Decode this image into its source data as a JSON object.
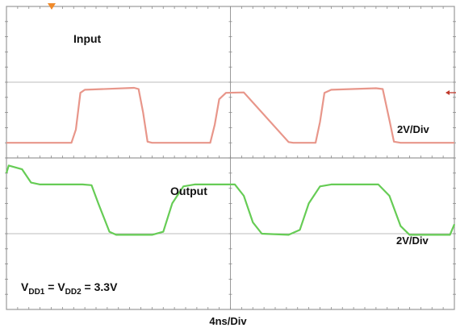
{
  "chart_data": {
    "type": "line",
    "x_label": "4ns/Div",
    "time_per_div_ns": 4,
    "volts_per_div": 2,
    "grid": {
      "h_divisions": 2,
      "v_divisions": 4,
      "minor_ticks_per_div": 5
    },
    "traces": [
      {
        "name": "Input",
        "scale_label": "2V/Div",
        "color": "#e8968a",
        "points": [
          [
            0,
            0.4
          ],
          [
            1.45,
            0.4
          ],
          [
            1.55,
            0.75
          ],
          [
            1.65,
            1.72
          ],
          [
            1.75,
            1.8
          ],
          [
            2.85,
            1.85
          ],
          [
            2.95,
            1.82
          ],
          [
            3.05,
            1.2
          ],
          [
            3.15,
            0.43
          ],
          [
            3.25,
            0.4
          ],
          [
            4.55,
            0.4
          ],
          [
            4.65,
            0.88
          ],
          [
            4.75,
            1.55
          ],
          [
            4.9,
            1.72
          ],
          [
            5.3,
            1.73
          ],
          [
            6.3,
            0.42
          ],
          [
            6.4,
            0.4
          ],
          [
            6.55,
            0.4
          ],
          [
            6.9,
            0.4
          ],
          [
            7.0,
            0.95
          ],
          [
            7.1,
            1.72
          ],
          [
            7.25,
            1.8
          ],
          [
            8.25,
            1.84
          ],
          [
            8.4,
            1.82
          ],
          [
            8.55,
            1.0
          ],
          [
            8.65,
            0.43
          ],
          [
            8.8,
            0.4
          ],
          [
            10,
            0.4
          ]
        ]
      },
      {
        "name": "Output",
        "scale_label": "2V/Div",
        "color": "#66cc55",
        "points": [
          [
            0,
            -0.4
          ],
          [
            0.05,
            -0.2
          ],
          [
            0.35,
            -0.3
          ],
          [
            0.55,
            -0.65
          ],
          [
            0.75,
            -0.7
          ],
          [
            1.7,
            -0.7
          ],
          [
            1.9,
            -0.72
          ],
          [
            2.05,
            -1.2
          ],
          [
            2.3,
            -1.95
          ],
          [
            2.45,
            -2.03
          ],
          [
            3.25,
            -2.03
          ],
          [
            3.5,
            -1.95
          ],
          [
            3.7,
            -1.2
          ],
          [
            3.95,
            -0.75
          ],
          [
            4.2,
            -0.7
          ],
          [
            5.1,
            -0.7
          ],
          [
            5.3,
            -1.0
          ],
          [
            5.5,
            -1.7
          ],
          [
            5.7,
            -2.0
          ],
          [
            6.3,
            -2.03
          ],
          [
            6.55,
            -1.9
          ],
          [
            6.75,
            -1.2
          ],
          [
            7.0,
            -0.75
          ],
          [
            7.25,
            -0.7
          ],
          [
            8.3,
            -0.7
          ],
          [
            8.55,
            -1.0
          ],
          [
            8.8,
            -1.8
          ],
          [
            9.0,
            -2.03
          ],
          [
            9.9,
            -2.03
          ],
          [
            10,
            -1.75
          ]
        ]
      }
    ],
    "annotation": "V_DD1 = V_DD2 = 3.3V"
  }
}
